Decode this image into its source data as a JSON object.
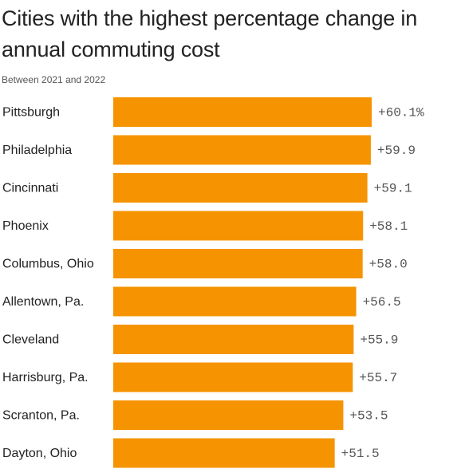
{
  "chart_data": {
    "type": "bar",
    "orientation": "horizontal",
    "title": "Cities with the highest percentage change in annual commuting cost",
    "subtitle": "Between 2021 and 2022",
    "xlabel": "",
    "ylabel": "",
    "xlim": [
      0,
      60.1
    ],
    "grid": false,
    "bar_color": "#f59400",
    "categories": [
      "Pittsburgh",
      "Philadelphia",
      "Cincinnati",
      "Phoenix",
      "Columbus, Ohio",
      "Allentown, Pa.",
      "Cleveland",
      "Harrisburg, Pa.",
      "Scranton, Pa.",
      "Dayton, Ohio"
    ],
    "values": [
      60.1,
      59.9,
      59.1,
      58.1,
      58.0,
      56.5,
      55.9,
      55.7,
      53.5,
      51.5
    ],
    "value_labels": [
      "+60.1%",
      "+59.9",
      "+59.1",
      "+58.1",
      "+58.0",
      "+56.5",
      "+55.9",
      "+55.7",
      "+53.5",
      "+51.5"
    ]
  }
}
